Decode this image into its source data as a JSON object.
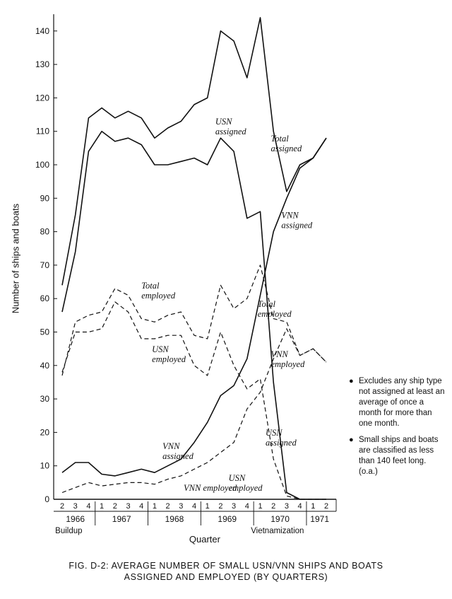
{
  "caption": {
    "line1": "FIG. D-2:  AVERAGE NUMBER OF SMALL USN/VNN SHIPS AND BOATS",
    "line2": "ASSIGNED AND EMPLOYED (BY QUARTERS)"
  },
  "notes": [
    "Excludes any ship type not assigned at least an average of once a month for more than one month.",
    "Small ships and boats are classified as less than 140 feet long. (o.a.)"
  ],
  "bullet": "●",
  "chart_data": {
    "type": "line",
    "ylabel": "Number of ships and boats",
    "xlabel": "Quarter",
    "ylim": [
      0,
      145
    ],
    "yticks": [
      0,
      10,
      20,
      30,
      40,
      50,
      60,
      70,
      80,
      90,
      100,
      110,
      120,
      130,
      140
    ],
    "quarters": [
      "2",
      "3",
      "4",
      "1",
      "2",
      "3",
      "4",
      "1",
      "2",
      "3",
      "4",
      "1",
      "2",
      "3",
      "4",
      "1",
      "2",
      "3",
      "4",
      "1",
      "2"
    ],
    "years": [
      {
        "label": "1966",
        "start": 0,
        "end": 2
      },
      {
        "label": "1967",
        "start": 3,
        "end": 6
      },
      {
        "label": "1968",
        "start": 7,
        "end": 10
      },
      {
        "label": "1969",
        "start": 11,
        "end": 14
      },
      {
        "label": "1970",
        "start": 15,
        "end": 18
      },
      {
        "label": "1971",
        "start": 19,
        "end": 20
      }
    ],
    "year_separators": [
      2.5,
      6.5,
      10.5,
      14.5,
      18.5
    ],
    "periods": [
      {
        "label": "Buildup",
        "at": 0.5
      },
      {
        "label": "Vietnamization",
        "at": 16.3
      }
    ],
    "series": [
      {
        "name": "Total assigned",
        "style": "solid",
        "values": [
          64,
          85,
          114,
          117,
          114,
          116,
          114,
          108,
          111,
          113,
          118,
          120,
          140,
          137,
          126,
          144,
          110,
          92,
          100,
          102,
          108
        ]
      },
      {
        "name": "USN assigned",
        "style": "solid",
        "values": [
          56,
          74,
          104,
          110,
          107,
          108,
          106,
          100,
          100,
          101,
          102,
          100,
          108,
          104,
          84,
          86,
          35,
          2,
          0,
          0,
          0
        ]
      },
      {
        "name": "VNN assigned",
        "style": "solid",
        "values": [
          8,
          11,
          11,
          7.5,
          7,
          8,
          9,
          8,
          10,
          12,
          17,
          23,
          31,
          34,
          42,
          61,
          80,
          90,
          99,
          102,
          108
        ]
      },
      {
        "name": "Total employed",
        "style": "dashed",
        "values": [
          37,
          53,
          55,
          56,
          63,
          61,
          54,
          53,
          55,
          56,
          49,
          48,
          64,
          57,
          60,
          70,
          54,
          53,
          43,
          45,
          41
        ]
      },
      {
        "name": "USN employed",
        "style": "dashed",
        "values": [
          38,
          50,
          50,
          51,
          59,
          56,
          48,
          48,
          49,
          49,
          40,
          37,
          50,
          40,
          33,
          36,
          12,
          1,
          0,
          0,
          0
        ]
      },
      {
        "name": "VNN employed",
        "style": "dashed",
        "values": [
          2,
          3.5,
          5,
          4,
          4.5,
          5,
          5,
          4.5,
          6,
          7,
          9,
          11,
          14,
          17,
          27,
          32,
          42,
          51,
          43,
          45,
          41
        ]
      }
    ],
    "annotations": [
      {
        "lines": [
          "USN",
          "assigned"
        ],
        "x": 11.6,
        "y": 112
      },
      {
        "lines": [
          "Total",
          "assigned"
        ],
        "x": 15.8,
        "y": 107
      },
      {
        "lines": [
          "VNN",
          "assigned"
        ],
        "x": 16.6,
        "y": 84
      },
      {
        "lines": [
          "Total",
          "employed"
        ],
        "x": 6.0,
        "y": 63
      },
      {
        "lines": [
          "USN",
          "employed"
        ],
        "x": 6.8,
        "y": 44
      },
      {
        "lines": [
          "Total",
          "employed"
        ],
        "x": 14.8,
        "y": 57.5
      },
      {
        "lines": [
          "VNN",
          "employed"
        ],
        "x": 15.8,
        "y": 42.5
      },
      {
        "lines": [
          "VNN",
          "assigned"
        ],
        "x": 7.6,
        "y": 15
      },
      {
        "lines": [
          "VNN employed"
        ],
        "x": 9.2,
        "y": 2.5
      },
      {
        "lines": [
          "USN",
          "employed"
        ],
        "x": 12.6,
        "y": 5.5
      },
      {
        "lines": [
          "USN",
          "assigned"
        ],
        "x": 15.4,
        "y": 19
      }
    ]
  }
}
